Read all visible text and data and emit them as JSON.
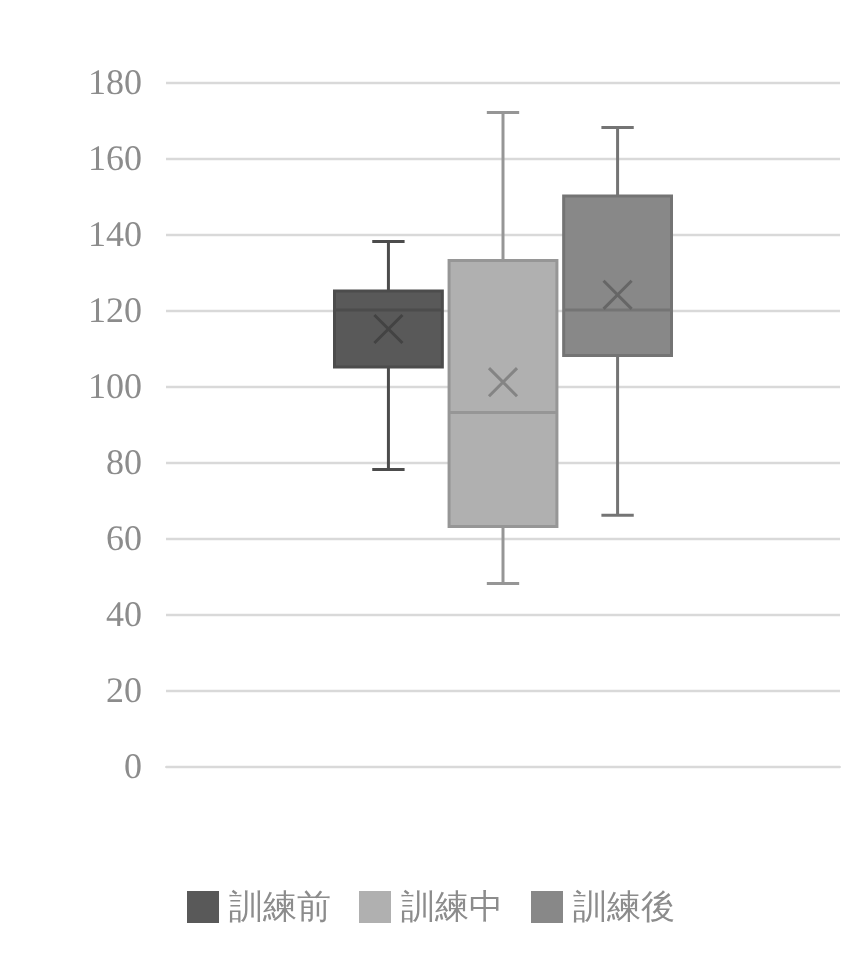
{
  "chart_data": {
    "type": "box",
    "categories": [
      null
    ],
    "series": [
      {
        "name": "訓練前",
        "color": "#595959",
        "boxes": [
          {
            "low": 78,
            "q1": 105,
            "median": 120,
            "q3": 125,
            "high": 138,
            "mean": 115
          }
        ]
      },
      {
        "name": "訓練中",
        "color": "#b0b0b0",
        "boxes": [
          {
            "low": 48,
            "q1": 63,
            "median": 93,
            "q3": 133,
            "high": 172,
            "mean": 101
          }
        ]
      },
      {
        "name": "訓練後",
        "color": "#888888",
        "boxes": [
          {
            "low": 66,
            "q1": 108,
            "median": 120,
            "q3": 150,
            "high": 168,
            "mean": 124
          }
        ]
      }
    ],
    "ylim": [
      0,
      180
    ],
    "yticks": [
      0,
      20,
      40,
      60,
      80,
      100,
      120,
      140,
      160,
      180
    ],
    "grid": "y",
    "legend": "bottom"
  }
}
